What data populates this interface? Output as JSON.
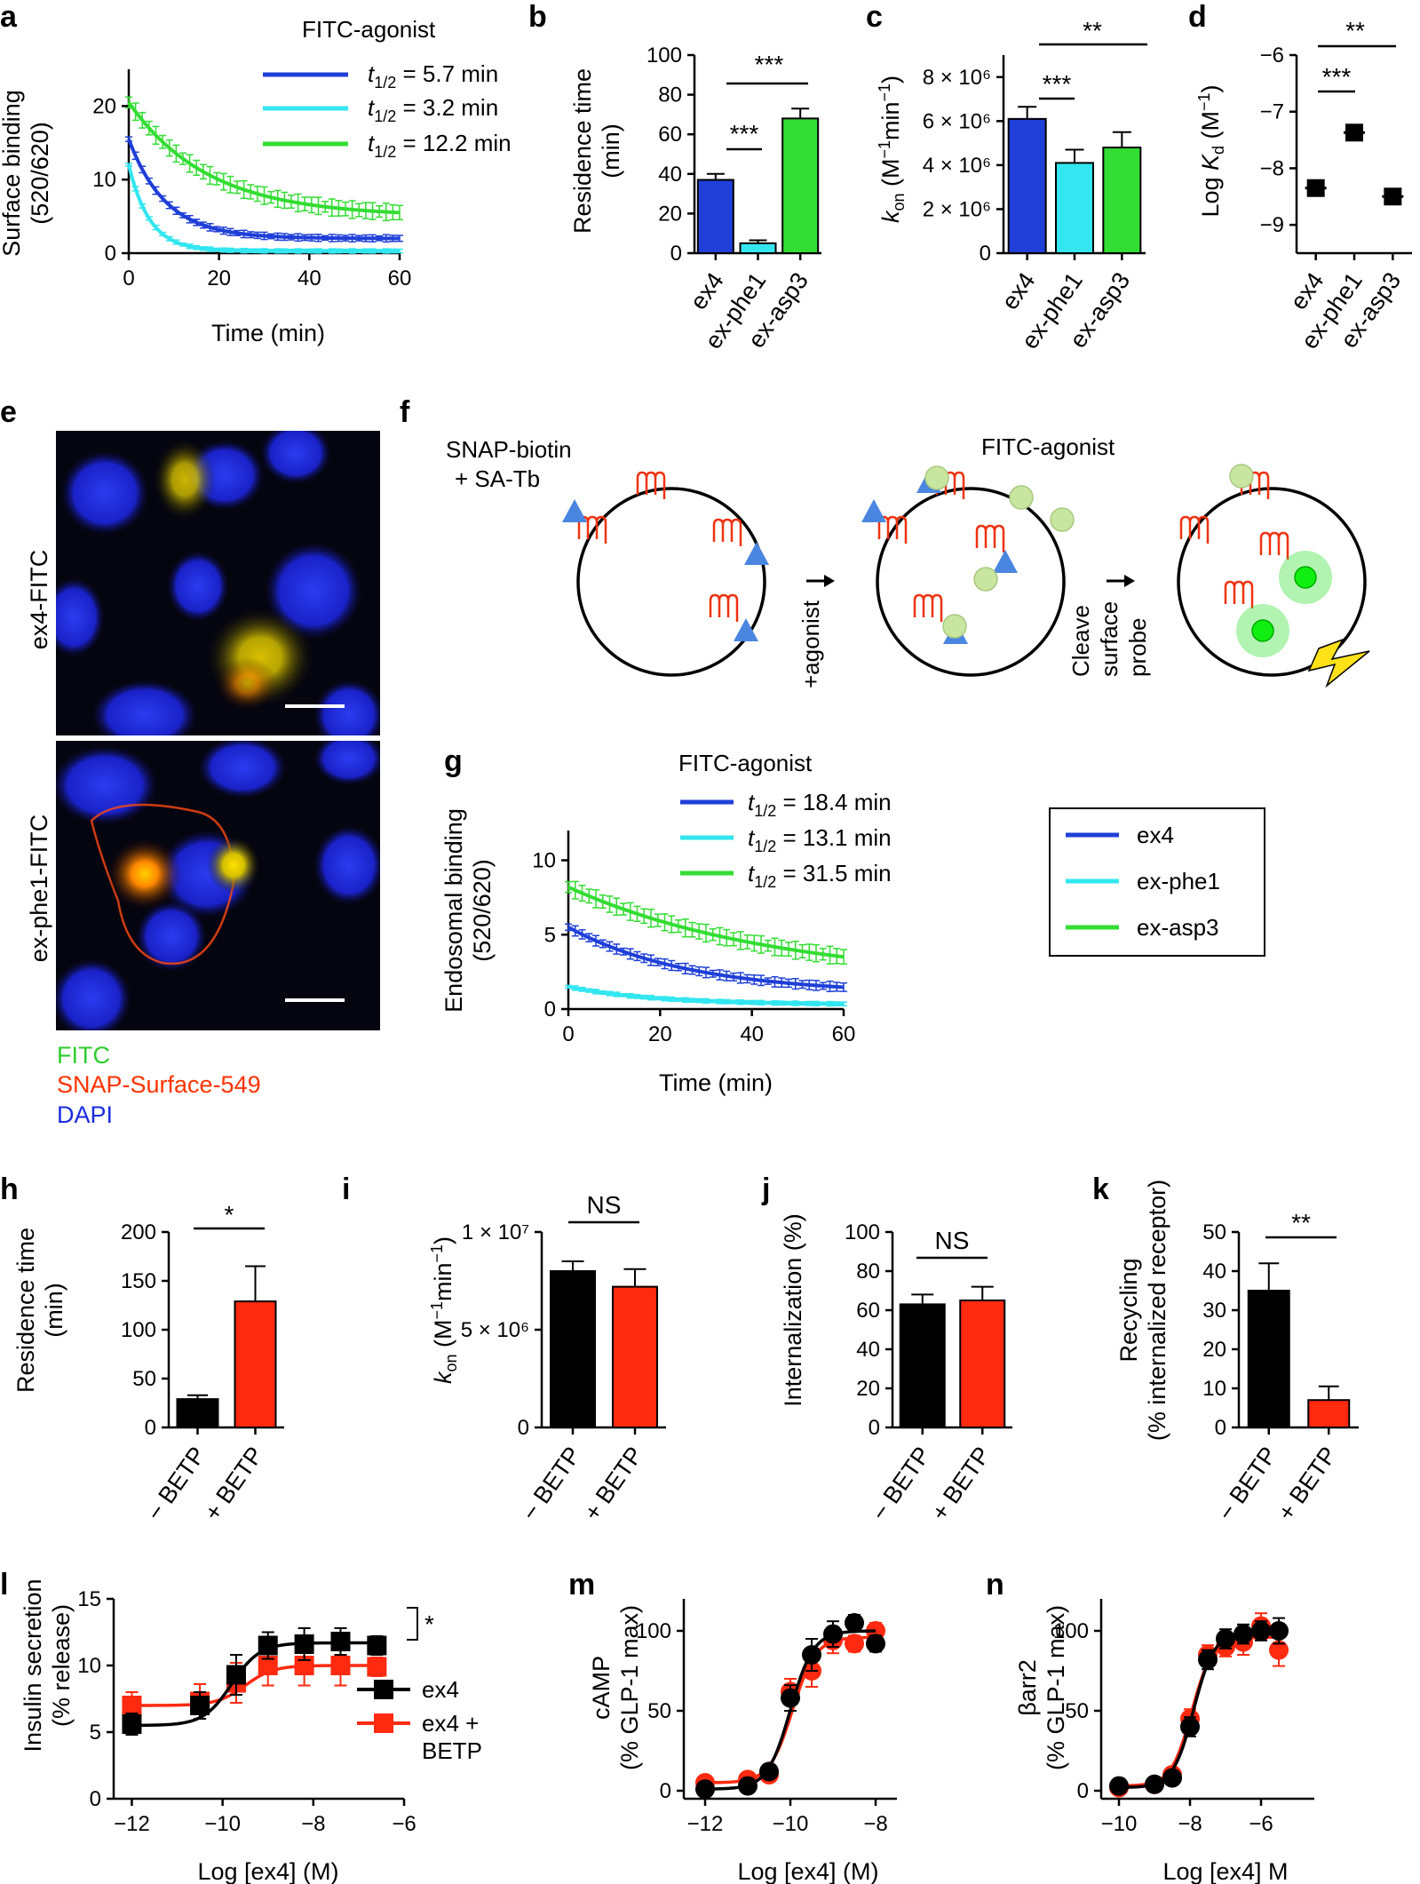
{
  "colors": {
    "ex4": "#1f3fd8",
    "exphe1": "#33e6f0",
    "exasp3": "#33dd33",
    "minus": "#000000",
    "plus": "#ff2a10",
    "fitc": "#2ecc2e",
    "snap": "#ff3300",
    "dapi": "#1a2be0",
    "tb": "#4a86e0",
    "receptor": "#ee3311",
    "bead": "#c8e6a0"
  },
  "panels": {
    "a": {
      "label": "a",
      "title": "FITC-agonist",
      "ylabel": "Surface binding (520/620)",
      "ylabel1": "Surface binding",
      "ylabel2": "(520/620)",
      "xlabel": "Time (min)",
      "xticks": [
        "0",
        "20",
        "40",
        "60"
      ],
      "yticks": [
        "0",
        "10",
        "20"
      ],
      "legend": [
        {
          "t": "t",
          "sub": "1/2",
          "val": " = 5.7 min"
        },
        {
          "t": "t",
          "sub": "1/2",
          "val": " = 3.2 min"
        },
        {
          "t": "t",
          "sub": "1/2",
          "val": " = 12.2 min"
        }
      ]
    },
    "b": {
      "label": "b",
      "ylabel1": "Residence time",
      "ylabel2": "(min)",
      "yticks": [
        "0",
        "20",
        "40",
        "60",
        "80",
        "100"
      ],
      "cats": [
        "ex4",
        "ex-phe1",
        "ex-asp3"
      ],
      "sig1": "***",
      "sig2": "***"
    },
    "c": {
      "label": "c",
      "ylabel": "kon (M−1min−1)",
      "yticks": [
        "0",
        "2 × 10⁶",
        "4 × 10⁶",
        "6 × 10⁶",
        "8 × 10⁶"
      ],
      "cats": [
        "ex4",
        "ex-phe1",
        "ex-asp3"
      ],
      "sig1": "***",
      "sig2": "**"
    },
    "d": {
      "label": "d",
      "ylabel": "Log Kd (M−1)",
      "yticks": [
        "−6",
        "−7",
        "−8",
        "−9"
      ],
      "cats": [
        "ex4",
        "ex-phe1",
        "ex-asp3"
      ],
      "sig1": "***",
      "sig2": "**"
    },
    "e": {
      "label": "e",
      "img1": "ex4-FITC",
      "img2": "ex-phe1-FITC",
      "legend": [
        "FITC",
        "SNAP-Surface-549",
        "DAPI"
      ]
    },
    "f": {
      "label": "f",
      "t1": "SNAP-biotin",
      "t2": "+ SA-Tb",
      "t3": "FITC-agonist",
      "step1": "+agonist",
      "step2a": "Cleave",
      "step2b": "surface",
      "step2c": "probe"
    },
    "g": {
      "label": "g",
      "title": "FITC-agonist",
      "ylabel1": "Endosomal binding",
      "ylabel2": "(520/620)",
      "xlabel": "Time (min)",
      "xticks": [
        "0",
        "20",
        "40",
        "60"
      ],
      "yticks": [
        "0",
        "5",
        "10"
      ],
      "legend": [
        {
          "t": "t",
          "sub": "1/2",
          "val": " = 18.4 min"
        },
        {
          "t": "t",
          "sub": "1/2",
          "val": " = 13.1 min"
        },
        {
          "t": "t",
          "sub": "1/2",
          "val": " = 31.5 min"
        }
      ]
    },
    "keybox": {
      "items": [
        "ex4",
        "ex-phe1",
        "ex-asp3"
      ]
    },
    "h": {
      "label": "h",
      "ylabel1": "Residence time",
      "ylabel2": "(min)",
      "yticks": [
        "0",
        "50",
        "100",
        "150",
        "200"
      ],
      "cats": [
        "− BETP",
        "+ BETP"
      ],
      "sig": "*"
    },
    "i": {
      "label": "i",
      "ylabel": "kon (M−1min−1)",
      "yticks": [
        "0",
        "5 × 10⁶",
        "1 × 10⁷"
      ],
      "cats": [
        "− BETP",
        "+ BETP"
      ],
      "sig": "NS"
    },
    "j": {
      "label": "j",
      "ylabel": "Internalization (%)",
      "yticks": [
        "0",
        "20",
        "40",
        "60",
        "80",
        "100"
      ],
      "cats": [
        "− BETP",
        "+ BETP"
      ],
      "sig": "NS"
    },
    "k": {
      "label": "k",
      "ylabel1": "Recycling",
      "ylabel2": "(% internalized receptor)",
      "yticks": [
        "0",
        "10",
        "20",
        "30",
        "40",
        "50"
      ],
      "cats": [
        "− BETP",
        "+ BETP"
      ],
      "sig": "**"
    },
    "l": {
      "label": "l",
      "ylabel1": "Insulin secretion",
      "ylabel2": "(% release)",
      "xlabel": "Log [ex4] (M)",
      "xticks": [
        "−12",
        "−10",
        "−8",
        "−6"
      ],
      "yticks": [
        "0",
        "5",
        "10",
        "15"
      ],
      "sig": "*",
      "leg1": "ex4",
      "leg2a": "ex4 +",
      "leg2b": "BETP"
    },
    "m": {
      "label": "m",
      "ylabel1": "cAMP",
      "ylabel2": "(% GLP-1 max)",
      "xlabel": "Log [ex4] (M)",
      "xticks": [
        "−12",
        "−10",
        "−8"
      ],
      "yticks": [
        "0",
        "50",
        "100"
      ]
    },
    "n": {
      "label": "n",
      "ylabel1": "βarr2",
      "ylabel2": "(% GLP-1 max)",
      "xlabel": "Log [ex4] M",
      "xticks": [
        "−10",
        "−8",
        "−6"
      ],
      "yticks": [
        "0",
        "50",
        "100"
      ]
    }
  },
  "chart_data": [
    {
      "id": "a",
      "type": "line",
      "title": "FITC-agonist",
      "xlabel": "Time (min)",
      "ylabel": "Surface binding (520/620)",
      "xlim": [
        0,
        60
      ],
      "ylim": [
        0,
        25
      ],
      "series": [
        {
          "name": "ex4",
          "y0": 15.5,
          "plateau": 2,
          "half": 5.7
        },
        {
          "name": "ex-phe1",
          "y0": 12,
          "plateau": 0.3,
          "half": 3.2
        },
        {
          "name": "ex-asp3",
          "y0": 20.5,
          "plateau": 5,
          "half": 12.2
        }
      ]
    },
    {
      "id": "b",
      "type": "bar",
      "categories": [
        "ex4",
        "ex-phe1",
        "ex-asp3"
      ],
      "values": [
        37,
        5,
        68
      ],
      "errors": [
        3,
        1.5,
        5
      ],
      "ylabel": "Residence time (min)",
      "ylim": [
        0,
        100
      ]
    },
    {
      "id": "c",
      "type": "bar",
      "categories": [
        "ex4",
        "ex-phe1",
        "ex-asp3"
      ],
      "values": [
        6.1,
        4.1,
        4.8
      ],
      "errors": [
        0.55,
        0.6,
        0.7
      ],
      "ylabel": "kon (×10⁶ M−1 min−1)",
      "ylim": [
        0,
        9
      ]
    },
    {
      "id": "d",
      "type": "scatter",
      "categories": [
        "ex4",
        "ex-phe1",
        "ex-asp3"
      ],
      "values": [
        -8.35,
        -7.37,
        -8.5
      ],
      "ylabel": "Log Kd (M−1)",
      "ylim": [
        -9.5,
        -6
      ]
    },
    {
      "id": "g",
      "type": "line",
      "title": "FITC-agonist",
      "xlabel": "Time (min)",
      "ylabel": "Endosomal binding (520/620)",
      "xlim": [
        0,
        60
      ],
      "ylim": [
        0,
        12
      ],
      "series": [
        {
          "name": "ex4",
          "y0": 5.5,
          "plateau": 1,
          "half": 18.4
        },
        {
          "name": "ex-phe1",
          "y0": 1.5,
          "plateau": 0.3,
          "half": 13.1
        },
        {
          "name": "ex-asp3",
          "y0": 8.2,
          "plateau": 1.8,
          "half": 31.5
        }
      ]
    },
    {
      "id": "h",
      "type": "bar",
      "categories": [
        "− BETP",
        "+ BETP"
      ],
      "values": [
        29,
        129
      ],
      "errors": [
        4,
        36
      ],
      "ylabel": "Residence time (min)",
      "ylim": [
        0,
        200
      ]
    },
    {
      "id": "i",
      "type": "bar",
      "categories": [
        "− BETP",
        "+ BETP"
      ],
      "values": [
        8.0,
        7.2
      ],
      "errors": [
        0.5,
        0.9
      ],
      "ylabel": "kon (×10⁶ M−1 min−1)",
      "ylim": [
        0,
        10
      ]
    },
    {
      "id": "j",
      "type": "bar",
      "categories": [
        "− BETP",
        "+ BETP"
      ],
      "values": [
        63,
        65
      ],
      "errors": [
        5,
        7
      ],
      "ylabel": "Internalization (%)",
      "ylim": [
        0,
        100
      ]
    },
    {
      "id": "k",
      "type": "bar",
      "categories": [
        "− BETP",
        "+ BETP"
      ],
      "values": [
        35,
        7
      ],
      "errors": [
        7,
        3.5
      ],
      "ylabel": "Recycling (% internalized receptor)",
      "ylim": [
        0,
        50
      ]
    },
    {
      "id": "l",
      "type": "line",
      "xlabel": "Log [ex4] (M)",
      "ylabel": "Insulin secretion (% release)",
      "xlim": [
        -12,
        -6
      ],
      "ylim": [
        0,
        15
      ],
      "x": [
        -12,
        -10.5,
        -9.7,
        -9,
        -8.2,
        -7.4,
        -6.6
      ],
      "series": [
        {
          "name": "ex4",
          "values": [
            5.6,
            7.0,
            9.3,
            11.5,
            11.6,
            11.8,
            11.5
          ],
          "errors": [
            0.8,
            1.0,
            1.5,
            1.0,
            1.2,
            1.0,
            0.7
          ]
        },
        {
          "name": "ex4 + BETP",
          "values": [
            7.0,
            7.3,
            8.7,
            10.0,
            10.0,
            10.0,
            9.9
          ],
          "errors": [
            1.0,
            1.3,
            1.5,
            1.5,
            1.5,
            1.5,
            0.7
          ]
        }
      ]
    },
    {
      "id": "m",
      "type": "line",
      "xlabel": "Log [ex4] (M)",
      "ylabel": "cAMP (% GLP-1 max)",
      "xlim": [
        -12.5,
        -7.5
      ],
      "ylim": [
        -5,
        120
      ],
      "x": [
        -12,
        -11,
        -10.5,
        -10,
        -9.5,
        -9,
        -8.5,
        -8
      ],
      "series": [
        {
          "name": "ex4",
          "values": [
            1,
            3,
            12,
            58,
            85,
            98,
            105,
            92
          ],
          "errors": [
            3,
            3,
            4,
            8,
            10,
            8,
            5,
            5
          ]
        },
        {
          "name": "ex4 + BETP",
          "values": [
            5,
            7,
            10,
            62,
            75,
            94,
            92,
            100
          ],
          "errors": [
            3,
            3,
            4,
            8,
            10,
            8,
            5,
            5
          ]
        }
      ]
    },
    {
      "id": "n",
      "type": "line",
      "xlabel": "Log [ex4] M",
      "ylabel": "βarr2 (% GLP-1 max)",
      "xlim": [
        -10.5,
        -4.5
      ],
      "ylim": [
        -5,
        120
      ],
      "x": [
        -10,
        -9,
        -8.5,
        -8,
        -7.5,
        -7,
        -6.5,
        -6,
        -5.5
      ],
      "series": [
        {
          "name": "ex4",
          "values": [
            3,
            4,
            8,
            40,
            82,
            95,
            98,
            100,
            100
          ],
          "errors": [
            2,
            2,
            3,
            6,
            6,
            6,
            6,
            6,
            8
          ]
        },
        {
          "name": "ex4 + BETP",
          "values": [
            2,
            4,
            10,
            45,
            85,
            90,
            93,
            103,
            88
          ],
          "errors": [
            2,
            2,
            3,
            6,
            6,
            6,
            8,
            8,
            10
          ]
        }
      ]
    }
  ]
}
